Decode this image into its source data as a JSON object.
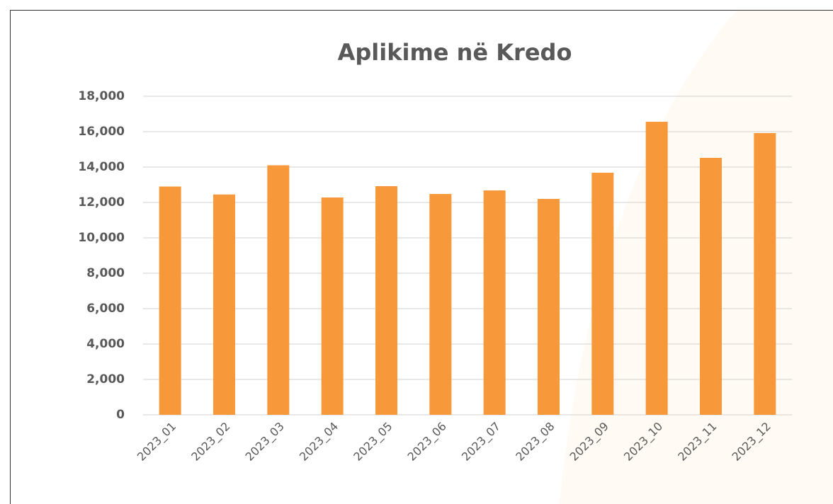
{
  "chart_data": {
    "type": "bar",
    "title": "Aplikime në Kredo",
    "categories": [
      "2023_01",
      "2023_02",
      "2023_03",
      "2023_04",
      "2023_05",
      "2023_06",
      "2023_07",
      "2023_08",
      "2023_09",
      "2023_10",
      "2023_11",
      "2023_12"
    ],
    "values": [
      12900,
      12450,
      14100,
      12280,
      12920,
      12480,
      12680,
      12200,
      13680,
      16560,
      14520,
      15920
    ],
    "color": "#f7993b",
    "ylim": [
      0,
      18000
    ],
    "yticks": [
      0,
      {
        "value": 2000,
        "label": "2,000"
      },
      {
        "value": 4000,
        "label": "4,000"
      },
      {
        "value": 6000,
        "label": "6,000"
      },
      {
        "value": 8000,
        "label": "8,000"
      },
      {
        "value": 10000,
        "label": "10,000"
      },
      {
        "value": 12000,
        "label": "12,000"
      },
      {
        "value": 14000,
        "label": "14,000"
      },
      {
        "value": 16000,
        "label": "16,000"
      },
      {
        "value": 18000,
        "label": "18,000"
      }
    ],
    "grid": true
  }
}
